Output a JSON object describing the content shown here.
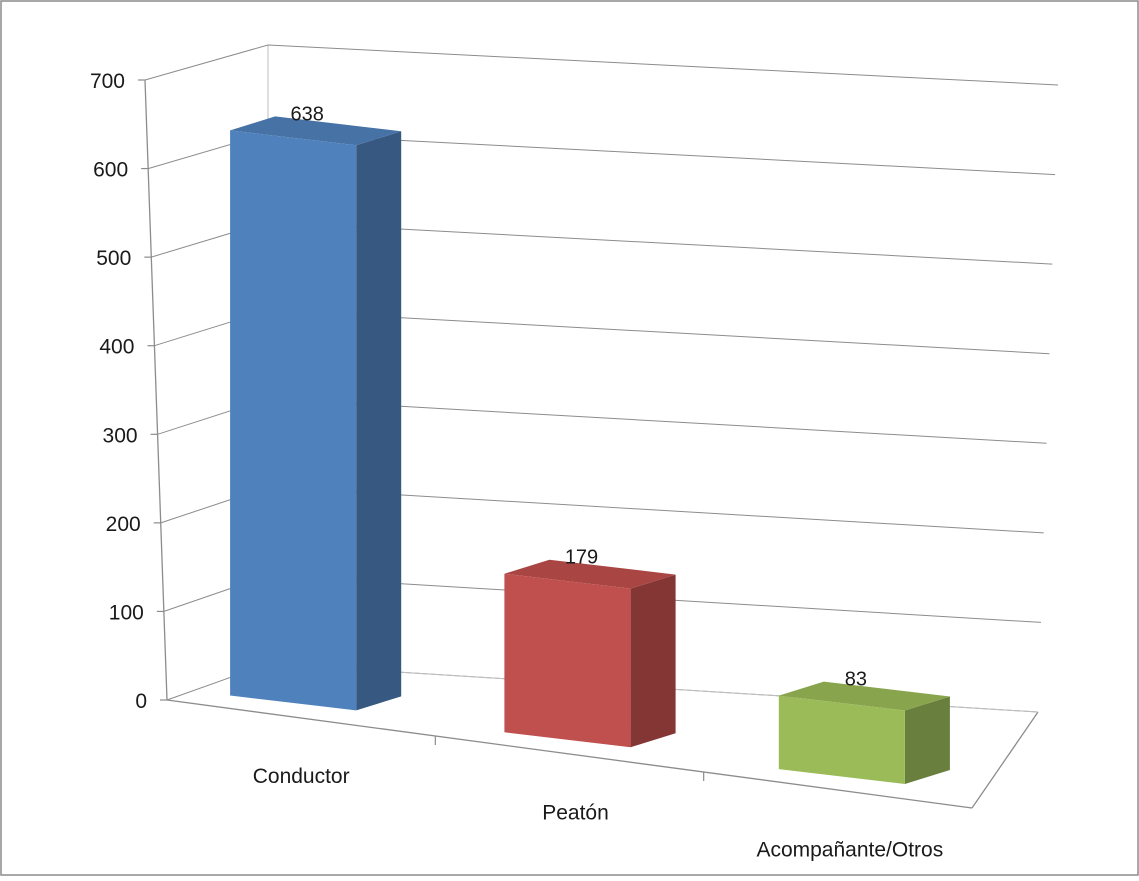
{
  "chart_data": {
    "type": "bar",
    "categories": [
      "Conductor",
      "Peatón",
      "Acompañante/Otros"
    ],
    "values": [
      638,
      179,
      83
    ],
    "data_labels": [
      "638",
      "179",
      "83"
    ],
    "title": "",
    "xlabel": "",
    "ylabel": "",
    "ylim": [
      0,
      700
    ],
    "yticks": [
      0,
      100,
      200,
      300,
      400,
      500,
      600,
      700
    ],
    "ytick_labels": [
      "0",
      "100",
      "200",
      "300",
      "400",
      "500",
      "600",
      "700"
    ],
    "grid": true,
    "legend": "none",
    "style": "3d-column",
    "colors": [
      "#4f81bd",
      "#c0504d",
      "#9bbb59"
    ]
  }
}
